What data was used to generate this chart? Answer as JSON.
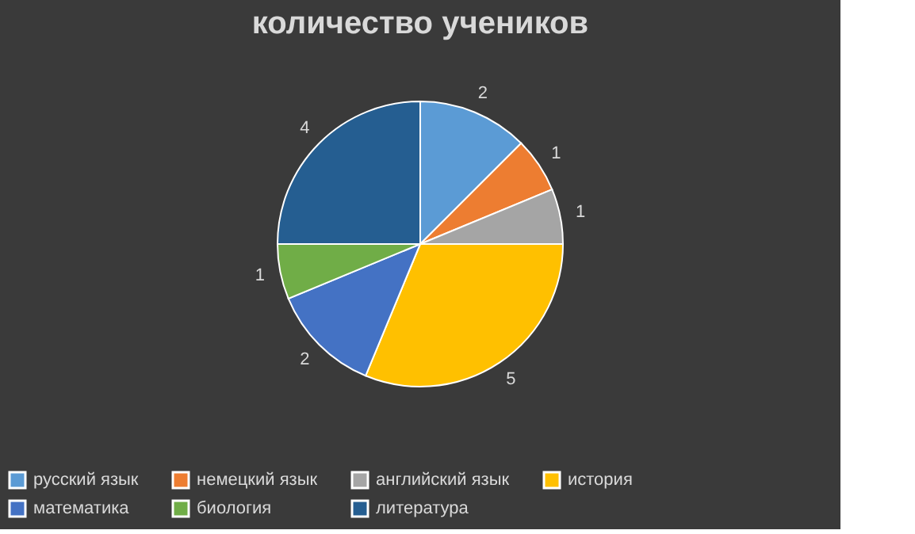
{
  "chart_data": {
    "type": "pie",
    "title": "количество учеников",
    "categories": [
      "русский язык",
      "немецкий язык",
      "английский язык",
      "история",
      "математика",
      "биология",
      "литература"
    ],
    "values": [
      2,
      1,
      1,
      5,
      2,
      1,
      4
    ],
    "colors": [
      "#5b9bd5",
      "#ed7d31",
      "#a5a5a5",
      "#ffc000",
      "#4472c4",
      "#70ad47",
      "#255e91"
    ],
    "data_labels": true,
    "legend": "bottom"
  }
}
